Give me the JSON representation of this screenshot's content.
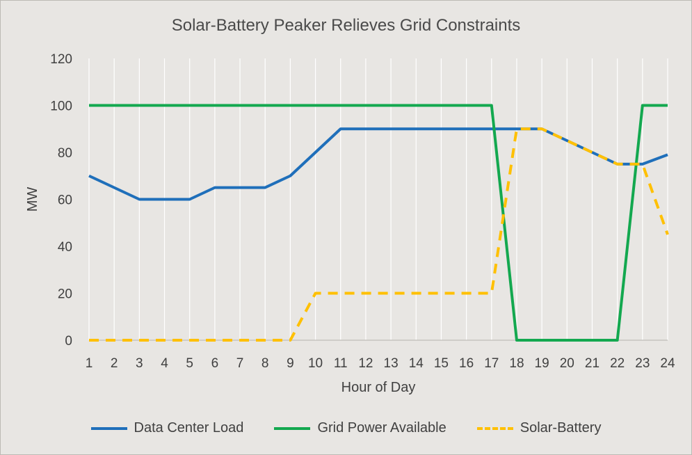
{
  "chart_data": {
    "type": "line",
    "title": "Solar-Battery Peaker Relieves Grid Constraints",
    "xlabel": "Hour of Day",
    "ylabel": "MW",
    "x": [
      1,
      2,
      3,
      4,
      5,
      6,
      7,
      8,
      9,
      10,
      11,
      12,
      13,
      14,
      15,
      16,
      17,
      18,
      19,
      20,
      21,
      22,
      23,
      24
    ],
    "ylim": [
      0,
      120
    ],
    "yticks": [
      0,
      20,
      40,
      60,
      80,
      100,
      120
    ],
    "grid": "vertical",
    "legend_position": "bottom",
    "series": [
      {
        "name": "Data Center Load",
        "color": "#1f6fba",
        "style": "solid",
        "values": [
          70,
          65,
          60,
          60,
          60,
          65,
          65,
          65,
          70,
          80,
          90,
          90,
          90,
          90,
          90,
          90,
          90,
          90,
          90,
          85,
          80,
          75,
          75,
          79
        ]
      },
      {
        "name": "Grid Power Available",
        "color": "#13a84f",
        "style": "solid",
        "values": [
          100,
          100,
          100,
          100,
          100,
          100,
          100,
          100,
          100,
          100,
          100,
          100,
          100,
          100,
          100,
          100,
          100,
          0,
          0,
          0,
          0,
          0,
          100,
          100
        ]
      },
      {
        "name": "Solar-Battery",
        "color": "#ffc000",
        "style": "dashed",
        "values": [
          0,
          0,
          0,
          0,
          0,
          0,
          0,
          0,
          0,
          20,
          20,
          20,
          20,
          20,
          20,
          20,
          20,
          90,
          90,
          85,
          80,
          75,
          75,
          45
        ]
      }
    ]
  }
}
